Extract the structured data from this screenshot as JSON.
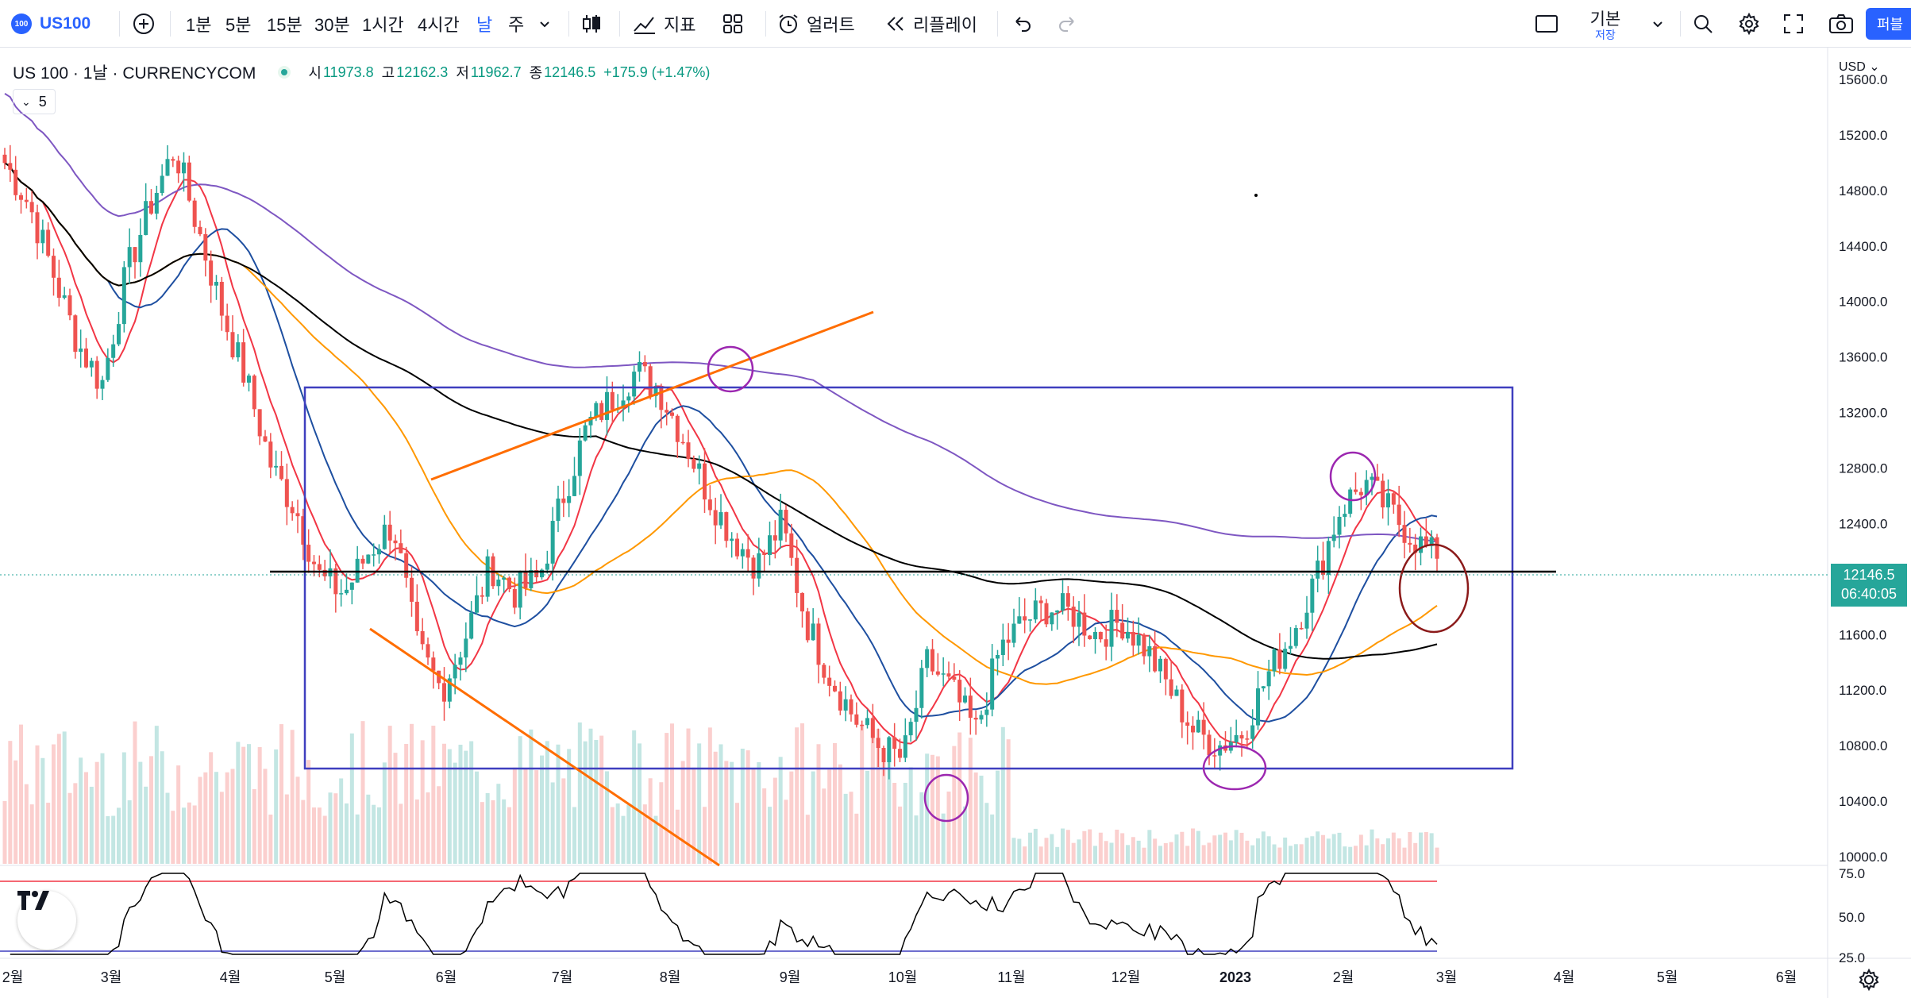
{
  "toolbar": {
    "symbol_badge": "100",
    "symbol": "US100",
    "timeframes": [
      "1분",
      "5분",
      "15분",
      "30분",
      "1시간",
      "4시간",
      "날",
      "주"
    ],
    "active_timeframe": "날",
    "indicators_label": "지표",
    "alert_label": "얼러트",
    "replay_label": "리플레이",
    "layout_name": "기본",
    "layout_status": "저장",
    "publish_label": "퍼블"
  },
  "legend": {
    "title": "US 100 · 1날 · CURRENCYCOM",
    "open_label": "시",
    "open": "11973.8",
    "high_label": "고",
    "high": "12162.3",
    "low_label": "저",
    "low": "11962.7",
    "close_label": "종",
    "close": "12146.5",
    "change": "+175.9 (+1.47%)",
    "indicator_value": "5"
  },
  "price_axis": {
    "currency": "USD",
    "current_price": "12146.5",
    "countdown": "06:40:05",
    "rsi_ticks": [
      "75.0",
      "50.0",
      "25.0"
    ]
  },
  "colors": {
    "up": "#26a69a",
    "down": "#ef5350",
    "accent": "#2962ff",
    "ma_black": "#000000",
    "ma_purple": "#7e57c2",
    "ma_orange": "#ff9800",
    "ma_blue": "#1e4fa0",
    "ma_red": "#f23645",
    "rect": "#3f3fbf",
    "trendline": "#ff6d00",
    "circle": "#9c27b0",
    "circle_dark": "#8b1a1a"
  },
  "chart_data": {
    "type": "candlestick",
    "price_ticks": [
      15600,
      15200,
      14800,
      14400,
      14000,
      13600,
      13200,
      12800,
      12400,
      12000,
      11600,
      11200,
      10800,
      10400,
      10000
    ],
    "ylim": [
      9980,
      15940
    ],
    "x_labels": [
      "2월",
      "3월",
      "4월",
      "5월",
      "6월",
      "7월",
      "8월",
      "9월",
      "10월",
      "11월",
      "12월",
      "2023",
      "2월",
      "3월",
      "4월",
      "5월",
      "6월"
    ],
    "close_series_approx": [
      15000,
      14700,
      14200,
      13700,
      13400,
      14200,
      14700,
      15100,
      14500,
      13900,
      13400,
      12800,
      12500,
      12000,
      11900,
      12200,
      12400,
      11500,
      11200,
      11600,
      12100,
      11900,
      12000,
      12600,
      13100,
      13300,
      13500,
      13350,
      13000,
      12600,
      12300,
      12100,
      12400,
      11700,
      11300,
      11000,
      10800,
      10700,
      11400,
      11200,
      10900,
      11500,
      11700,
      11800,
      11750,
      11600,
      11700,
      11500,
      11200,
      10900,
      10800,
      10900,
      11300,
      11600,
      12000,
      12500,
      12700,
      12500,
      12300,
      12146.5
    ],
    "horizontal_level": 12146.5,
    "range_box": {
      "top": 13600,
      "bottom": 10780,
      "from": "5월",
      "to": "3월 2023"
    },
    "rsi_levels": [
      70,
      30
    ]
  }
}
